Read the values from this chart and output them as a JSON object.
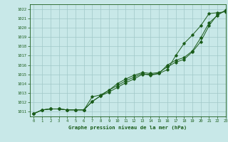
{
  "title": "Graphe pression niveau de la mer (hPa)",
  "bg_color": "#c8e8e8",
  "grid_color": "#a0c8c8",
  "line_color": "#1a5c1a",
  "xlim": [
    -0.5,
    23
  ],
  "ylim": [
    1010.5,
    1022.5
  ],
  "xticks": [
    0,
    1,
    2,
    3,
    4,
    5,
    6,
    7,
    8,
    9,
    10,
    11,
    12,
    13,
    14,
    15,
    16,
    17,
    18,
    19,
    20,
    21,
    22,
    23
  ],
  "yticks": [
    1011,
    1012,
    1013,
    1014,
    1015,
    1016,
    1017,
    1018,
    1019,
    1020,
    1021,
    1022
  ],
  "line1": [
    1010.8,
    1011.2,
    1011.3,
    1011.3,
    1011.2,
    1011.2,
    1011.2,
    1012.6,
    1012.8,
    1013.3,
    1013.8,
    1014.3,
    1014.7,
    1015.1,
    1014.9,
    1015.1,
    1015.5,
    1017.0,
    1018.3,
    1019.2,
    1020.2,
    1021.5,
    1021.6,
    1021.7
  ],
  "line2": [
    1010.8,
    1011.2,
    1011.3,
    1011.3,
    1011.2,
    1011.2,
    1011.2,
    1012.1,
    1012.7,
    1013.3,
    1014.0,
    1014.5,
    1014.9,
    1015.2,
    1015.1,
    1015.2,
    1015.8,
    1016.3,
    1016.6,
    1017.4,
    1018.5,
    1020.2,
    1021.4,
    1021.8
  ],
  "line3": [
    1010.8,
    1011.2,
    1011.3,
    1011.3,
    1011.2,
    1011.2,
    1011.2,
    1012.1,
    1012.7,
    1013.1,
    1013.6,
    1014.1,
    1014.5,
    1015.0,
    1015.0,
    1015.1,
    1016.0,
    1016.5,
    1016.8,
    1017.5,
    1018.9,
    1020.5,
    1021.3,
    1021.9
  ]
}
